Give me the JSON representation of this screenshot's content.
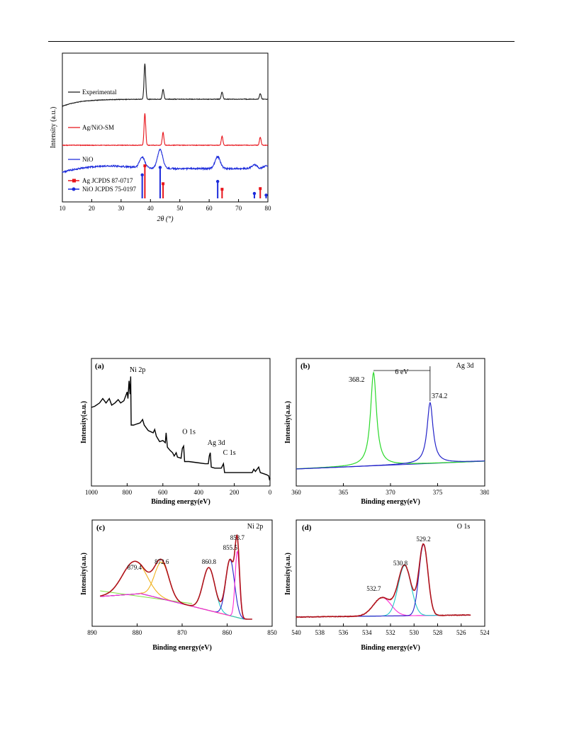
{
  "chart_data": [
    {
      "id": "xrd",
      "type": "line",
      "xlabel": "2θ (°)",
      "ylabel": "Intensity (a.u.)",
      "xlim": [
        10,
        80
      ],
      "xticks": [
        "10",
        "20",
        "30",
        "40",
        "50",
        "60",
        "70",
        "80"
      ],
      "series": [
        {
          "name": "Experimental",
          "color": "#1a1a1a",
          "peaks": [
            [
              38.1,
              1.0
            ],
            [
              44.3,
              0.28
            ],
            [
              64.4,
              0.2
            ],
            [
              77.4,
              0.16
            ]
          ]
        },
        {
          "name": "Ag/NiO-SM",
          "color": "#e8141b",
          "peaks": [
            [
              38.1,
              1.0
            ],
            [
              44.3,
              0.4
            ],
            [
              64.4,
              0.28
            ],
            [
              77.4,
              0.25
            ]
          ]
        },
        {
          "name": "NiO",
          "color": "#1c2bdb",
          "peaks": [
            [
              37.2,
              0.42
            ],
            [
              43.3,
              0.75
            ],
            [
              62.9,
              0.48
            ],
            [
              75.4,
              0.16
            ],
            [
              79.4,
              0.12
            ]
          ]
        }
      ],
      "references": [
        {
          "name": "Ag JCPDS 87-0717",
          "color": "#e8141b",
          "positions": [
            38.1,
            44.3,
            64.4,
            77.4
          ],
          "heights": [
            1.0,
            0.45,
            0.28,
            0.3
          ]
        },
        {
          "name": "NiO JCPDS 75-0197",
          "color": "#1c2bdb",
          "positions": [
            37.2,
            43.3,
            62.9,
            75.4,
            79.4
          ],
          "heights": [
            0.72,
            0.95,
            0.52,
            0.15,
            0.1
          ]
        }
      ],
      "legend_position": "left"
    },
    {
      "id": "survey",
      "type": "line",
      "panel_label": "(a)",
      "xlabel": "Binding energy(eV)",
      "ylabel": "Intensity(a.u.)",
      "xlim": [
        1100,
        0
      ],
      "xticks": [
        "1000",
        "800",
        "600",
        "400",
        "200",
        "0"
      ],
      "series": [
        {
          "name": "",
          "color": "#000000",
          "points": [
            [
              1100,
              0.66
            ],
            [
              1080,
              0.67
            ],
            [
              1050,
              0.7
            ],
            [
              1030,
              0.74
            ],
            [
              1010,
              0.7
            ],
            [
              990,
              0.74
            ],
            [
              975,
              0.68
            ],
            [
              955,
              0.7
            ],
            [
              935,
              0.73
            ],
            [
              920,
              0.7
            ],
            [
              900,
              0.72
            ],
            [
              880,
              0.8
            ],
            [
              875,
              0.74
            ],
            [
              868,
              0.9
            ],
            [
              862,
              0.78
            ],
            [
              858,
              0.94
            ],
            [
              855,
              0.5
            ],
            [
              840,
              0.5
            ],
            [
              820,
              0.51
            ],
            [
              800,
              0.52
            ],
            [
              785,
              0.55
            ],
            [
              775,
              0.5
            ],
            [
              750,
              0.45
            ],
            [
              720,
              0.43
            ],
            [
              710,
              0.46
            ],
            [
              700,
              0.4
            ],
            [
              680,
              0.35
            ],
            [
              660,
              0.36
            ],
            [
              645,
              0.34
            ],
            [
              640,
              0.43
            ],
            [
              632,
              0.3
            ],
            [
              615,
              0.27
            ],
            [
              600,
              0.25
            ],
            [
              590,
              0.22
            ],
            [
              578,
              0.25
            ],
            [
              570,
              0.21
            ],
            [
              548,
              0.2
            ],
            [
              540,
              0.29
            ],
            [
              532,
              0.31
            ],
            [
              526,
              0.17
            ],
            [
              500,
              0.17
            ],
            [
              450,
              0.16
            ],
            [
              400,
              0.15
            ],
            [
              380,
              0.15
            ],
            [
              374,
              0.22
            ],
            [
              368,
              0.25
            ],
            [
              362,
              0.12
            ],
            [
              340,
              0.11
            ],
            [
              300,
              0.11
            ],
            [
              287,
              0.15
            ],
            [
              280,
              0.07
            ],
            [
              250,
              0.07
            ],
            [
              200,
              0.07
            ],
            [
              150,
              0.07
            ],
            [
              110,
              0.07
            ],
            [
              100,
              0.1
            ],
            [
              90,
              0.08
            ],
            [
              70,
              0.12
            ],
            [
              60,
              0.07
            ],
            [
              40,
              0.06
            ],
            [
              20,
              0.05
            ],
            [
              8,
              0.04
            ],
            [
              2,
              0.0
            ],
            [
              0,
              0.02
            ]
          ]
        }
      ],
      "annotations": [
        {
          "text": "Ni 2p",
          "x": 865,
          "y": 0.96
        },
        {
          "text": "O 1s",
          "x": 540,
          "y": 0.4
        },
        {
          "text": "Ag 3d",
          "x": 385,
          "y": 0.3
        },
        {
          "text": "C 1s",
          "x": 290,
          "y": 0.21
        }
      ]
    },
    {
      "id": "ag3d",
      "type": "line",
      "panel_label": "(b)",
      "title": "Ag 3d",
      "xlabel": "Binding energy(eV)",
      "ylabel": "Intensity(a.u.)",
      "xlim": [
        360,
        380
      ],
      "xticks": [
        "360",
        "365",
        "370",
        "375",
        "380"
      ],
      "series": [
        {
          "name": "",
          "color": "#2bd92b",
          "peaks": [
            [
              368.2,
              0.92
            ]
          ]
        },
        {
          "name": "",
          "color": "#2323c9",
          "peaks": [
            [
              374.2,
              0.6
            ]
          ]
        }
      ],
      "annotations": [
        {
          "text": "368.2",
          "x": 368.2
        },
        {
          "text": "374.2",
          "x": 374.2
        },
        {
          "text": "6 eV",
          "x": 371.2
        }
      ]
    },
    {
      "id": "ni2p",
      "type": "line",
      "panel_label": "(c)",
      "title": "Ni 2p",
      "xlabel": "Binding energy(eV)",
      "ylabel": "Intensity(a.u.)",
      "xlim": [
        890,
        845
      ],
      "xticks": [
        "890",
        "880",
        "870",
        "860",
        "850"
      ],
      "series": [
        {
          "name": "",
          "color": "#f0b21e",
          "peaks": [
            [
              879.4,
              0.42
            ],
            [
              872.6,
              0.47
            ]
          ]
        },
        {
          "name": "",
          "color": "#21c8c8",
          "peaks": [
            [
              860.8,
              0.55
            ]
          ]
        },
        {
          "name": "",
          "color": "#2323c9",
          "peaks": [
            [
              855.5,
              0.72
            ]
          ]
        },
        {
          "name": "",
          "color": "#ff2bd6",
          "peaks": [
            [
              853.7,
              0.85
            ]
          ]
        }
      ],
      "annotations": [
        {
          "text": "879.4",
          "x": 879.4
        },
        {
          "text": "872.6",
          "x": 872.6
        },
        {
          "text": "860.8",
          "x": 860.8
        },
        {
          "text": "855.5",
          "x": 855.5
        },
        {
          "text": "853.7",
          "x": 853.7
        }
      ]
    },
    {
      "id": "o1s",
      "type": "line",
      "panel_label": "(d)",
      "title": "O 1s",
      "xlabel": "Binding energy(eV)",
      "ylabel": "Intensity(a.u.)",
      "xlim": [
        540,
        524
      ],
      "xticks": [
        "540",
        "538",
        "536",
        "534",
        "532",
        "530",
        "528",
        "526",
        "524"
      ],
      "series": [
        {
          "name": "",
          "color": "#ff2bd6",
          "peaks": [
            [
              532.7,
              0.22
            ]
          ]
        },
        {
          "name": "",
          "color": "#21c8c8",
          "peaks": [
            [
              530.8,
              0.6
            ]
          ]
        },
        {
          "name": "",
          "color": "#2323c9",
          "peaks": [
            [
              529.2,
              0.85
            ]
          ]
        }
      ],
      "annotations": [
        {
          "text": "532.7",
          "x": 532.7
        },
        {
          "text": "530.8",
          "x": 530.8
        },
        {
          "text": "529.2",
          "x": 529.2
        }
      ]
    }
  ]
}
